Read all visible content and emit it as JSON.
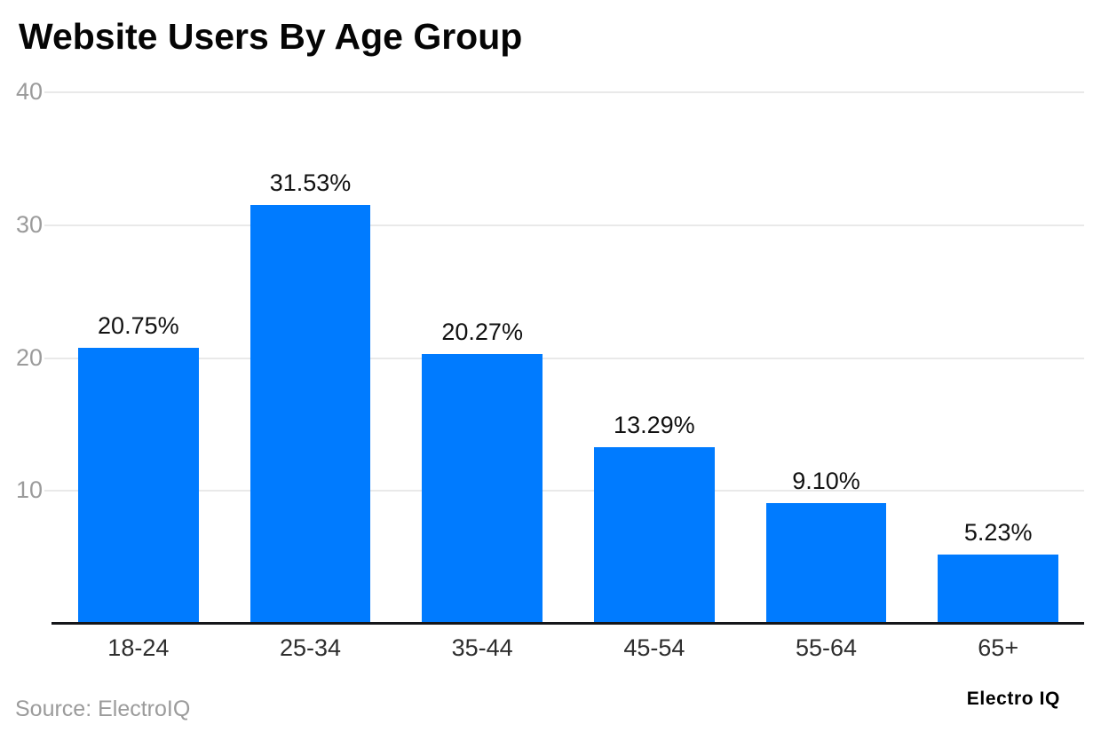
{
  "header": {
    "title": "Website Users By Age Group"
  },
  "footer": {
    "source": "Source: ElectroIQ",
    "brand": "Electro IQ"
  },
  "colors": {
    "bar": "#007bff",
    "gridline": "#e9e9e9",
    "axis_line": "#15161a",
    "y_tick_text": "#9b9b9b",
    "x_tick_text": "#2e2e2e",
    "value_label_text": "#111111",
    "background": "#ffffff"
  },
  "chart_data": {
    "type": "bar",
    "title": "Website Users By Age Group",
    "categories": [
      "18-24",
      "25-34",
      "35-44",
      "45-54",
      "55-64",
      "65+"
    ],
    "values": [
      20.75,
      31.53,
      20.27,
      13.29,
      9.1,
      5.23
    ],
    "value_labels": [
      "20.75%",
      "31.53%",
      "20.27%",
      "13.29%",
      "9.10%",
      "5.23%"
    ],
    "xlabel": "",
    "ylabel": "",
    "ylim": [
      0,
      40
    ],
    "yticks": [
      10,
      20,
      30,
      40
    ],
    "grid": "horizontal",
    "legend_position": "none",
    "bar_color": "#007bff"
  }
}
